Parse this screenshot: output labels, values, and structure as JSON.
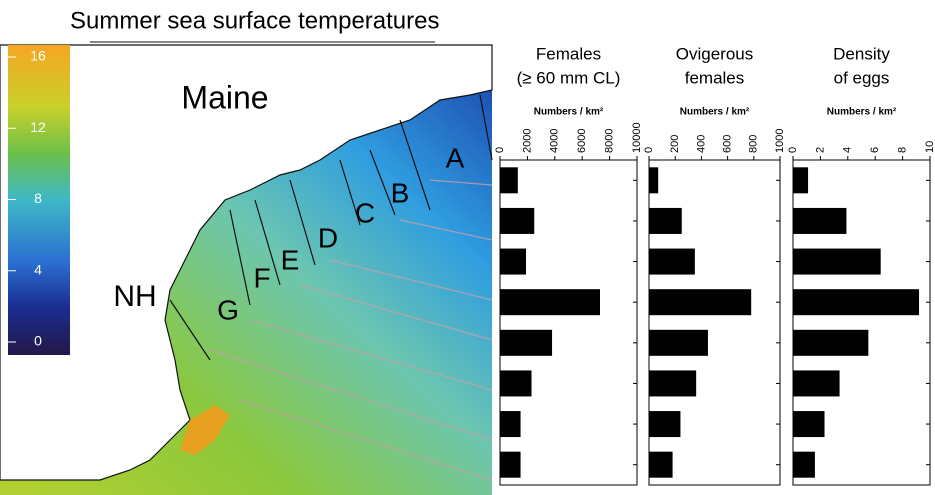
{
  "title": "Summer sea surface temperatures",
  "colorbar": {
    "ylim": [
      0,
      16
    ],
    "yticks": [
      0,
      4,
      8,
      12,
      16
    ]
  },
  "map_labels": [
    "Maine",
    "NH",
    "A",
    "B",
    "C",
    "D",
    "E",
    "F",
    "G"
  ],
  "chart_data": [
    {
      "type": "barh",
      "title": [
        "Females",
        "(≥ 60 mm CL)"
      ],
      "xlabel": "Numbers / km²",
      "categories": [
        null,
        null,
        null,
        null,
        null,
        null,
        null,
        null
      ],
      "values": [
        1300,
        2500,
        1900,
        7300,
        3800,
        2300,
        1500,
        1500
      ],
      "xlim": [
        0,
        10000
      ],
      "xticks": [
        0,
        2000,
        4000,
        6000,
        8000,
        10000
      ],
      "color": "#000000"
    },
    {
      "type": "barh",
      "title": [
        "Ovigerous",
        "females"
      ],
      "xlabel": "Numbers / km²",
      "categories": [
        null,
        null,
        null,
        null,
        null,
        null,
        null,
        null
      ],
      "values": [
        70,
        250,
        350,
        780,
        450,
        360,
        240,
        180
      ],
      "xlim": [
        0,
        1000
      ],
      "xticks": [
        0,
        200,
        400,
        600,
        800,
        1000
      ],
      "color": "#000000"
    },
    {
      "type": "barh",
      "title": [
        "Density",
        "of eggs"
      ],
      "xlabel": "Numbers / km²",
      "categories": [
        null,
        null,
        null,
        null,
        null,
        null,
        null,
        null
      ],
      "values": [
        1.1,
        3.9,
        6.4,
        9.2,
        5.5,
        3.4,
        2.3,
        1.6
      ],
      "xlim": [
        0,
        10
      ],
      "xticks": [
        0,
        2,
        4,
        6,
        8,
        10
      ],
      "color": "#000000"
    }
  ]
}
